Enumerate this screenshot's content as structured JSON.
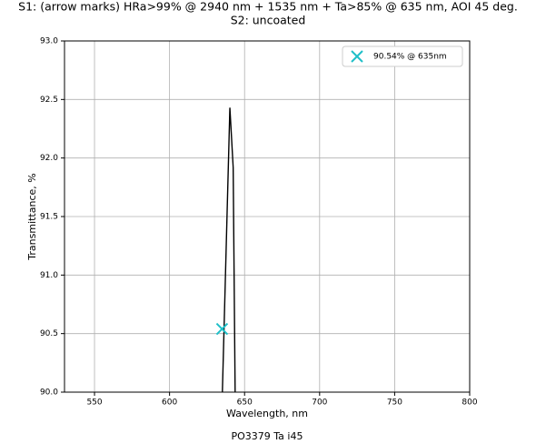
{
  "chart_data": {
    "type": "line",
    "title": "S1: (arrow marks) HRa>99% @ 2940 nm + 1535 nm + Ta>85% @ 635 nm, AOI 45 deg.",
    "subtitle": "S2: uncoated",
    "x_label": "Wavelength, nm",
    "y_label": "Transmittance, %",
    "footnote": "PO3379 Ta i45",
    "xlim": [
      530,
      800
    ],
    "ylim": [
      90.0,
      93.0
    ],
    "xticks": [
      550,
      600,
      650,
      700,
      750,
      800
    ],
    "yticks": [
      {
        "value": 90.0,
        "label": "90.0"
      },
      90.5,
      {
        "value": 91.0,
        "label": "91.0"
      },
      91.5,
      {
        "value": 92.0,
        "label": "92.0"
      },
      92.5,
      {
        "value": 93.0,
        "label": "93.0"
      }
    ],
    "grid": true,
    "legend": "upper right",
    "series": [
      {
        "color": "#000000",
        "style": "line",
        "x": [
          635.2,
          640.2,
          642.4,
          643.7
        ],
        "values": [
          90.0,
          92.43,
          91.92,
          90.0
        ]
      },
      {
        "name": "90.54% @ 635nm",
        "color": "#1fbfc8",
        "style": "x-marker",
        "x": [
          635
        ],
        "values": [
          90.54
        ]
      }
    ]
  }
}
